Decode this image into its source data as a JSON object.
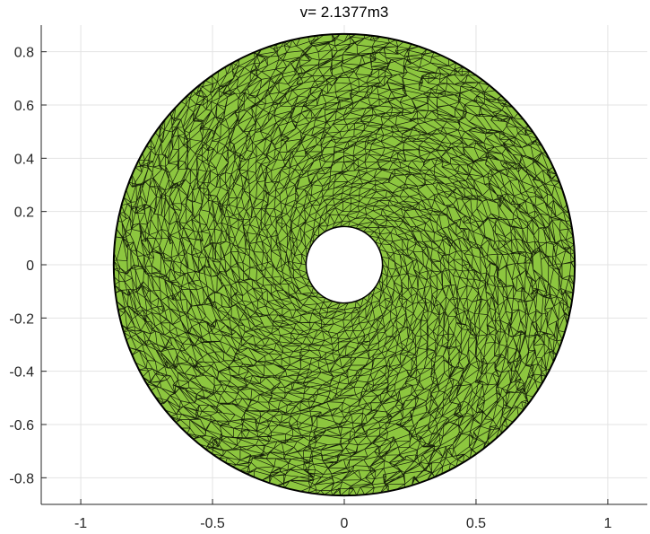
{
  "chart_data": {
    "type": "other",
    "title": "v= 2.1377m3",
    "xlabel": "",
    "ylabel": "",
    "xlim": [
      -1.15,
      1.15
    ],
    "ylim": [
      -0.9,
      0.9
    ],
    "x_ticks": [
      -1,
      -0.5,
      0,
      0.5,
      1
    ],
    "x_tick_labels": [
      "-1",
      "-0.5",
      "0",
      "0.5",
      "1"
    ],
    "y_ticks": [
      0.8,
      0.6,
      0.4,
      0.2,
      0,
      -0.2,
      -0.4,
      -0.6,
      -0.8
    ],
    "y_tick_labels": [
      "0.8",
      "0.6",
      "0.4",
      "0.2",
      "0",
      "-0.2",
      "-0.4",
      "-0.6",
      "-0.8"
    ],
    "grid": true,
    "legend": "none",
    "shape": {
      "description_kind": "triangulated annulus mesh",
      "center": [
        0,
        0
      ],
      "outer_radius": 0.875,
      "inner_radius": 0.145
    },
    "colors": {
      "face": "#8dc63f",
      "edge": "#000000",
      "grid": "#e3e3e3",
      "axis": "#262626"
    }
  }
}
